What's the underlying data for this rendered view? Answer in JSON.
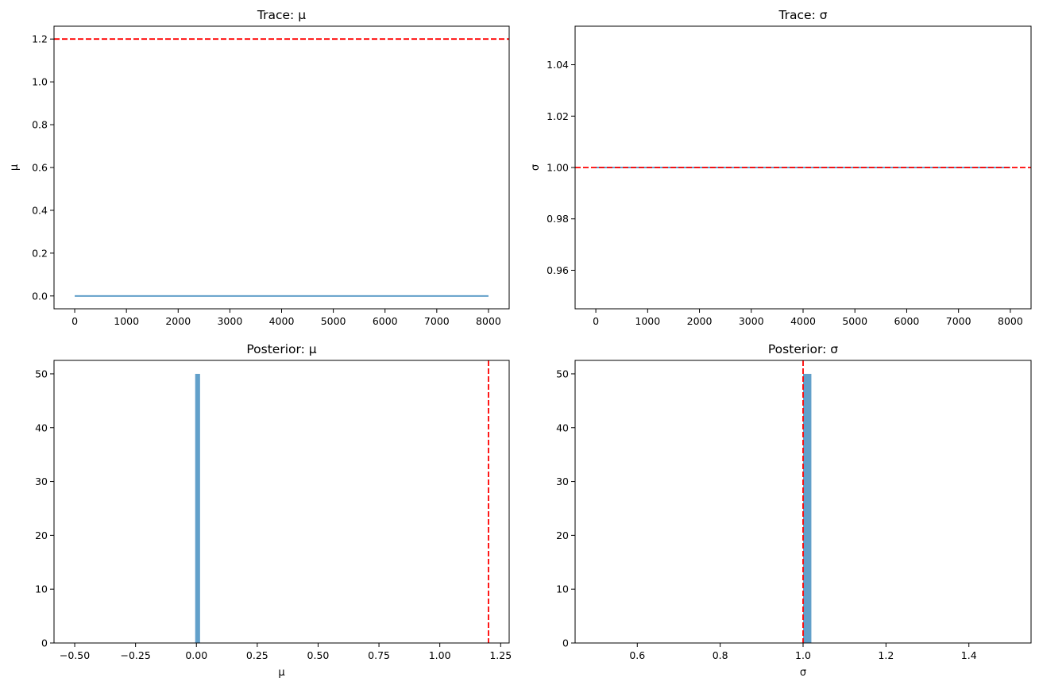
{
  "colors": {
    "series": "#1f77b4",
    "reference": "#ff0000",
    "axes": "#000000"
  },
  "chart_data": [
    {
      "type": "line",
      "title": "Trace: μ",
      "xlabel": "",
      "ylabel": "μ",
      "xlim": [
        -400,
        8400
      ],
      "ylim": [
        -0.06,
        1.26
      ],
      "xticks": [
        0,
        1000,
        2000,
        3000,
        4000,
        5000,
        6000,
        7000,
        8000
      ],
      "yticks": [
        0.0,
        0.2,
        0.4,
        0.6,
        0.8,
        1.0,
        1.2
      ],
      "yticklabels": [
        "0.0",
        "0.2",
        "0.4",
        "0.6",
        "0.8",
        "1.0",
        "1.2"
      ],
      "series": [
        {
          "x": [
            0,
            8000
          ],
          "y": [
            0.0,
            0.0
          ]
        }
      ],
      "hline": 1.2,
      "grid": false
    },
    {
      "type": "line",
      "title": "Trace: σ",
      "xlabel": "",
      "ylabel": "σ",
      "xlim": [
        -400,
        8400
      ],
      "ylim": [
        0.945,
        1.055
      ],
      "xticks": [
        0,
        1000,
        2000,
        3000,
        4000,
        5000,
        6000,
        7000,
        8000
      ],
      "yticks": [
        0.96,
        0.98,
        1.0,
        1.02,
        1.04
      ],
      "yticklabels": [
        "0.96",
        "0.98",
        "1.00",
        "1.02",
        "1.04"
      ],
      "series": [
        {
          "x": [
            0,
            8000
          ],
          "y": [
            1.0,
            1.0
          ]
        }
      ],
      "hline": 1.0,
      "grid": false
    },
    {
      "type": "bar",
      "title": "Posterior: μ",
      "xlabel": "μ",
      "ylabel": "",
      "xlim": [
        -0.585,
        1.285
      ],
      "ylim": [
        0,
        52.5
      ],
      "xticks": [
        -0.5,
        -0.25,
        0.0,
        0.25,
        0.5,
        0.75,
        1.0,
        1.25
      ],
      "xticklabels": [
        "−0.50",
        "−0.25",
        "0.00",
        "0.25",
        "0.50",
        "0.75",
        "1.00",
        "1.25"
      ],
      "yticks": [
        0,
        10,
        20,
        30,
        40,
        50
      ],
      "yticklabels": [
        "0",
        "10",
        "20",
        "30",
        "40",
        "50"
      ],
      "bars": [
        {
          "x0": -0.005,
          "x1": 0.015,
          "height": 50
        }
      ],
      "vline": 1.2,
      "grid": false
    },
    {
      "type": "bar",
      "title": "Posterior: σ",
      "xlabel": "σ",
      "ylabel": "",
      "xlim": [
        0.45,
        1.55
      ],
      "ylim": [
        0,
        52.5
      ],
      "xticks": [
        0.6,
        0.8,
        1.0,
        1.2,
        1.4
      ],
      "xticklabels": [
        "0.6",
        "0.8",
        "1.0",
        "1.2",
        "1.4"
      ],
      "yticks": [
        0,
        10,
        20,
        30,
        40,
        50
      ],
      "yticklabels": [
        "0",
        "10",
        "20",
        "30",
        "40",
        "50"
      ],
      "bars": [
        {
          "x0": 1.0,
          "x1": 1.02,
          "height": 50
        }
      ],
      "vline": 1.0,
      "grid": false
    }
  ]
}
